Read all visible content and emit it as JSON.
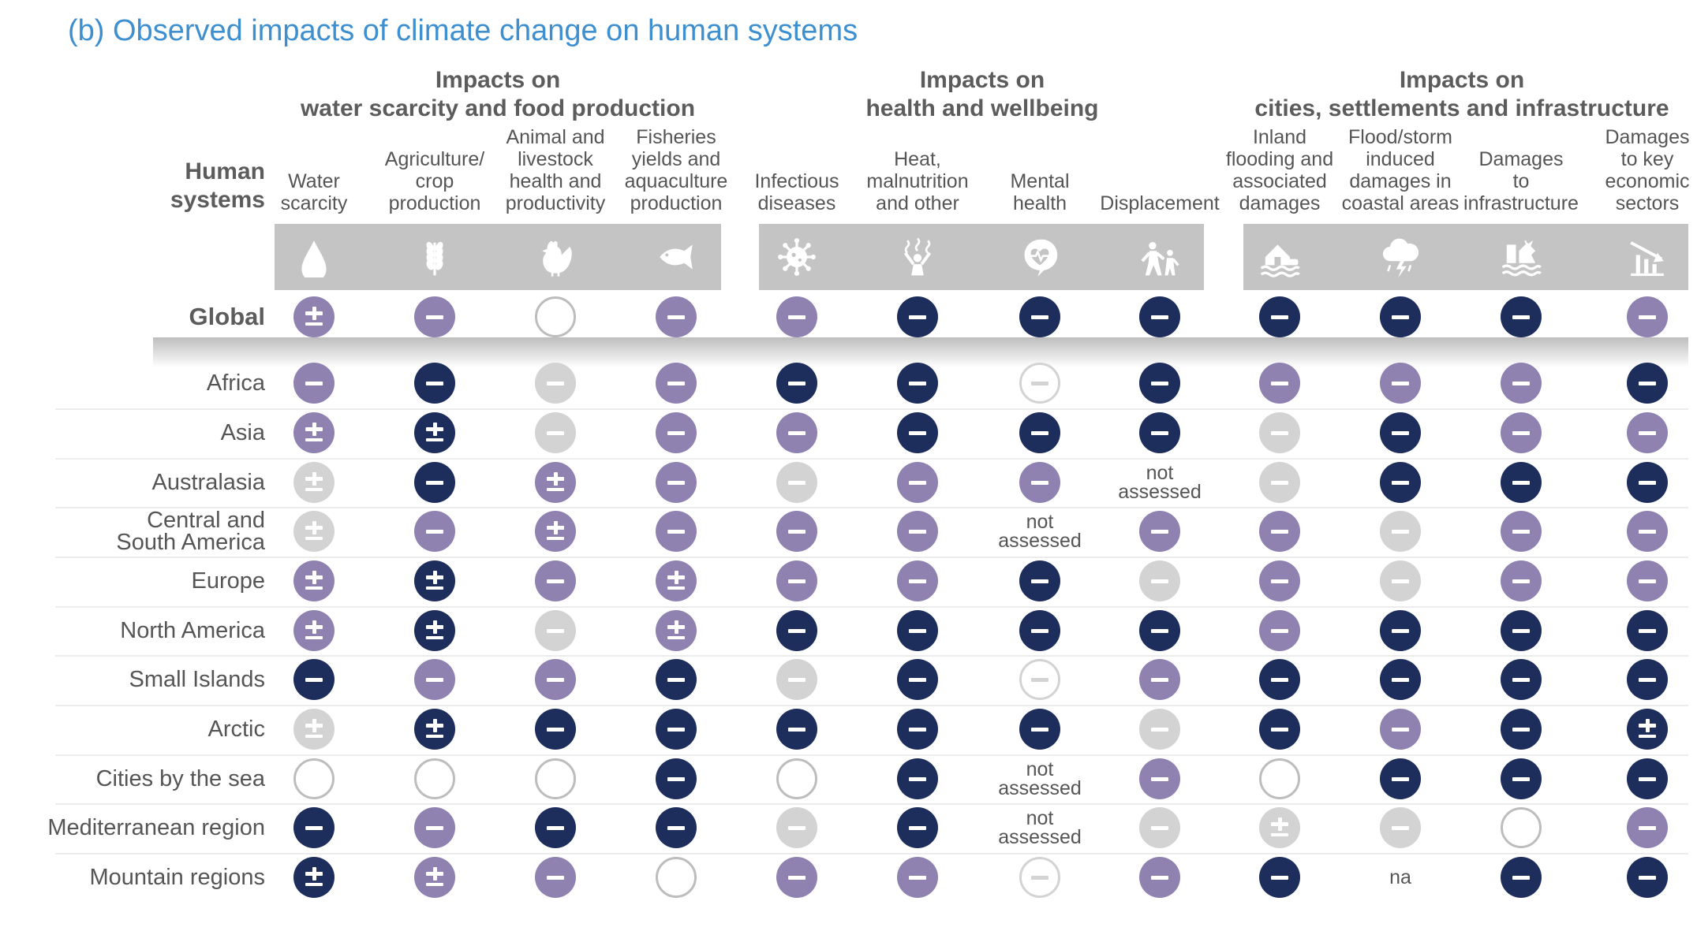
{
  "chart_data": {
    "type": "table",
    "title": "(b) Observed impacts of climate change on human systems",
    "row_header": [
      "Human",
      "systems"
    ],
    "colors": {
      "negative_high": "#1d2d5c",
      "negative_medium": "#8f82b0",
      "negative_low": "#d3d3d3",
      "outline": "#bdbdbd",
      "icon_band": "#c4c4c4",
      "title": "#3d8fcf"
    },
    "groups": [
      {
        "title": [
          "Impacts on",
          "water scarcity and food production"
        ]
      },
      {
        "title": [
          "Impacts on",
          "health and wellbeing"
        ]
      },
      {
        "title": [
          "Impacts on",
          "cities, settlements and infrastructure"
        ]
      }
    ],
    "columns": [
      {
        "label": [
          "Water",
          "scarcity"
        ],
        "icon": "water-drop-icon"
      },
      {
        "label": [
          "Agriculture/",
          "crop",
          "production"
        ],
        "icon": "wheat-icon"
      },
      {
        "label": [
          "Animal and",
          "livestock",
          "health and",
          "productivity"
        ],
        "icon": "chicken-icon"
      },
      {
        "label": [
          "Fisheries",
          "yields and",
          "aquaculture",
          "production"
        ],
        "icon": "fish-icon"
      },
      {
        "label": [
          "Infectious",
          "diseases"
        ],
        "icon": "virus-icon"
      },
      {
        "label": [
          "Heat,",
          "malnutrition",
          "and other"
        ],
        "icon": "heat-person-icon"
      },
      {
        "label": [
          "Mental",
          "health"
        ],
        "icon": "mental-health-icon"
      },
      {
        "label": [
          "Displacement"
        ],
        "icon": "displacement-icon"
      },
      {
        "label": [
          "Inland",
          "flooding and",
          "associated",
          "damages"
        ],
        "icon": "flooded-house-icon"
      },
      {
        "label": [
          "Flood/storm",
          "induced",
          "damages in",
          "coastal areas"
        ],
        "icon": "storm-cloud-icon"
      },
      {
        "label": [
          "Damages",
          "to",
          "infrastructure"
        ],
        "icon": "damaged-infrastructure-icon"
      },
      {
        "label": [
          "Damages",
          "to key",
          "economic",
          "sectors"
        ],
        "icon": "declining-chart-icon"
      }
    ],
    "rows": [
      {
        "label": [
          "Global"
        ],
        "global": true,
        "cells": [
          "pm-medium",
          "neg-medium",
          "empty",
          "neg-medium",
          "neg-medium",
          "neg-high",
          "neg-high",
          "neg-high",
          "neg-high",
          "neg-high",
          "neg-high",
          "neg-medium"
        ]
      },
      {
        "label": [
          "Africa"
        ],
        "cells": [
          "neg-medium",
          "neg-high",
          "neg-low",
          "neg-medium",
          "neg-high",
          "neg-high",
          "neg-outline",
          "neg-high",
          "neg-medium",
          "neg-medium",
          "neg-medium",
          "neg-high"
        ]
      },
      {
        "label": [
          "Asia"
        ],
        "cells": [
          "pm-medium",
          "pm-high",
          "neg-low",
          "neg-medium",
          "neg-medium",
          "neg-high",
          "neg-high",
          "neg-high",
          "neg-low",
          "neg-high",
          "neg-medium",
          "neg-medium"
        ]
      },
      {
        "label": [
          "Australasia"
        ],
        "cells": [
          "pm-low",
          "neg-high",
          "pm-medium",
          "neg-medium",
          "neg-low",
          "neg-medium",
          "neg-medium",
          "text:not|assessed",
          "neg-low",
          "neg-high",
          "neg-high",
          "neg-high"
        ]
      },
      {
        "label": [
          "Central and",
          "South America"
        ],
        "cells": [
          "pm-low",
          "neg-medium",
          "pm-medium",
          "neg-medium",
          "neg-medium",
          "neg-medium",
          "text:not|assessed",
          "neg-medium",
          "neg-medium",
          "neg-low",
          "neg-medium",
          "neg-medium"
        ]
      },
      {
        "label": [
          "Europe"
        ],
        "cells": [
          "pm-medium",
          "pm-high",
          "neg-medium",
          "pm-medium",
          "neg-medium",
          "neg-medium",
          "neg-high",
          "neg-low",
          "neg-medium",
          "neg-low",
          "neg-medium",
          "neg-medium"
        ]
      },
      {
        "label": [
          "North America"
        ],
        "cells": [
          "pm-medium",
          "pm-high",
          "neg-low",
          "pm-medium",
          "neg-high",
          "neg-high",
          "neg-high",
          "neg-high",
          "neg-medium",
          "neg-high",
          "neg-high",
          "neg-high"
        ]
      },
      {
        "label": [
          "Small Islands"
        ],
        "cells": [
          "neg-high",
          "neg-medium",
          "neg-medium",
          "neg-high",
          "neg-low",
          "neg-high",
          "neg-outline",
          "neg-medium",
          "neg-high",
          "neg-high",
          "neg-high",
          "neg-high"
        ]
      },
      {
        "label": [
          "Arctic"
        ],
        "cells": [
          "pm-low",
          "pm-high",
          "neg-high",
          "neg-high",
          "neg-high",
          "neg-high",
          "neg-high",
          "neg-low",
          "neg-high",
          "neg-medium",
          "neg-high",
          "pm-high"
        ]
      },
      {
        "label": [
          "Cities by the sea"
        ],
        "cells": [
          "empty",
          "empty",
          "empty",
          "neg-high",
          "empty",
          "neg-high",
          "text:not|assessed",
          "neg-medium",
          "empty",
          "neg-high",
          "neg-high",
          "neg-high"
        ]
      },
      {
        "label": [
          "Mediterranean region"
        ],
        "cells": [
          "neg-high",
          "neg-medium",
          "neg-high",
          "neg-high",
          "neg-low",
          "neg-high",
          "text:not|assessed",
          "neg-low",
          "pm-low",
          "neg-low",
          "empty",
          "neg-medium"
        ]
      },
      {
        "label": [
          "Mountain regions"
        ],
        "cells": [
          "pm-high",
          "pm-medium",
          "neg-medium",
          "empty",
          "neg-medium",
          "neg-medium",
          "neg-outline",
          "neg-medium",
          "neg-high",
          "text:na",
          "neg-high",
          "neg-high"
        ]
      }
    ]
  }
}
